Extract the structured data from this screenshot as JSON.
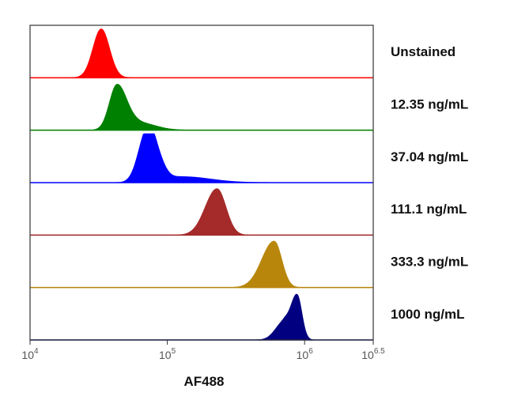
{
  "chart_data": {
    "type": "area",
    "subtype": "stacked-histogram",
    "xlabel": "AF488",
    "x_scale": "log10",
    "xlim": [
      10000,
      3162278
    ],
    "x_ticks": [
      {
        "base": "10",
        "exp": "4"
      },
      {
        "base": "10",
        "exp": "5"
      },
      {
        "base": "10",
        "exp": "6"
      },
      {
        "base": "10",
        "exp": "6.5"
      }
    ],
    "series": [
      {
        "name": "Unstained",
        "color": "#ff0000",
        "peaks": [
          {
            "x": 33000,
            "h": 1.0,
            "wl": 0.06,
            "wr": 0.06
          }
        ]
      },
      {
        "name": "12.35 ng/mL",
        "color": "#008000",
        "peaks": [
          {
            "x": 43000,
            "h": 0.92,
            "wl": 0.055,
            "wr": 0.07
          },
          {
            "x": 62000,
            "h": 0.15,
            "wl": 0.08,
            "wr": 0.12
          }
        ]
      },
      {
        "name": "37.04 ng/mL",
        "color": "#0000ff",
        "peaks": [
          {
            "x": 70000,
            "h": 0.93,
            "wl": 0.06,
            "wr": 0.05
          },
          {
            "x": 82000,
            "h": 0.55,
            "wl": 0.05,
            "wr": 0.06
          },
          {
            "x": 130000,
            "h": 0.12,
            "wl": 0.1,
            "wr": 0.2
          }
        ]
      },
      {
        "name": "111.1 ng/mL",
        "color": "#a52a2a",
        "peaks": [
          {
            "x": 230000,
            "h": 0.95,
            "wl": 0.085,
            "wr": 0.065
          }
        ]
      },
      {
        "name": "333.3 ng/mL",
        "color": "#b8860b",
        "peaks": [
          {
            "x": 600000,
            "h": 0.95,
            "wl": 0.09,
            "wr": 0.055
          }
        ]
      },
      {
        "name": "1000 ng/mL",
        "color": "#000080",
        "peaks": [
          {
            "x": 880000,
            "h": 0.92,
            "wl": 0.045,
            "wr": 0.035
          },
          {
            "x": 700000,
            "h": 0.35,
            "wl": 0.06,
            "wr": 0.04
          }
        ]
      }
    ],
    "legend_placement": "right of each row"
  }
}
